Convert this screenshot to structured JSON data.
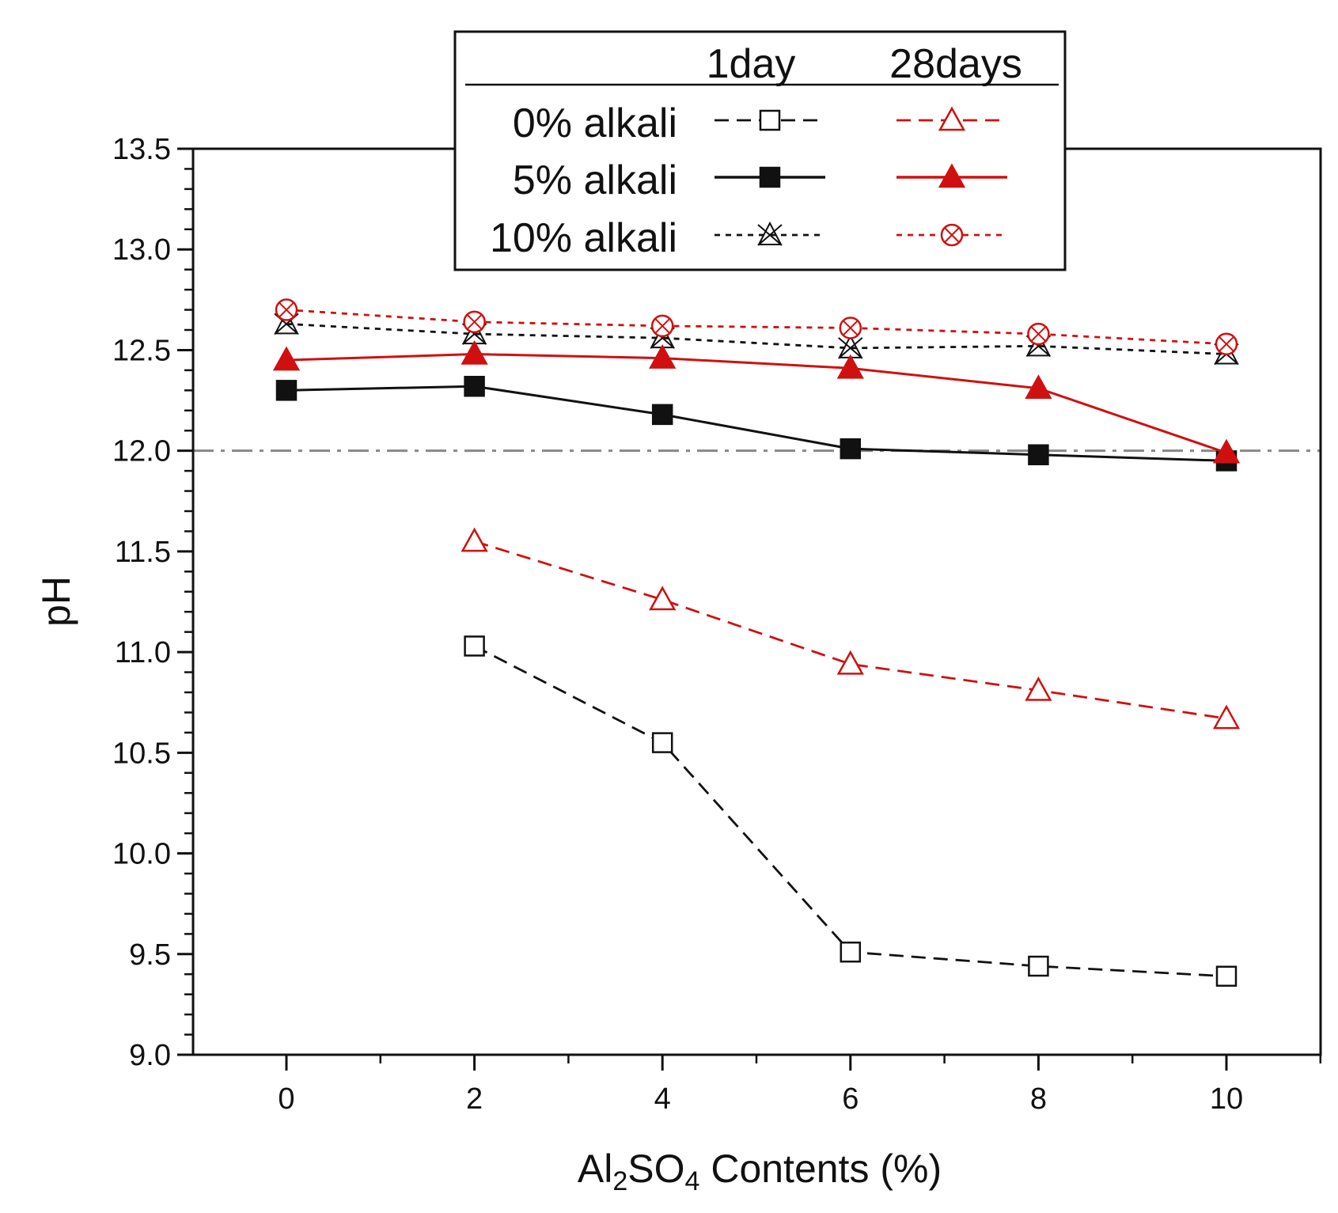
{
  "chart_data": {
    "type": "line",
    "title": "",
    "xlabel": {
      "prefix": "Al",
      "sub1": "2",
      "mid": "SO",
      "sub2": "4",
      "suffix": " Contents (%)"
    },
    "ylabel": "pH",
    "xlim": [
      -1,
      11
    ],
    "ylim": [
      9.0,
      13.5
    ],
    "xticks": [
      0,
      2,
      4,
      6,
      8,
      10
    ],
    "xtick_labels": [
      "0",
      "2",
      "4",
      "6",
      "8",
      "10"
    ],
    "yticks": [
      9.0,
      9.5,
      10.0,
      10.5,
      11.0,
      11.5,
      12.0,
      12.5,
      13.0,
      13.5
    ],
    "ytick_labels": [
      "9.0",
      "9.5",
      "10.0",
      "10.5",
      "11.0",
      "11.5",
      "12.0",
      "12.5",
      "13.0",
      "13.5"
    ],
    "reference_line": {
      "y": 12.0,
      "style": "dash-dot",
      "color": "#888888"
    },
    "legend": {
      "position": "top-center",
      "column_headers": [
        "1day",
        "28days"
      ],
      "row_labels": [
        "0% alkali",
        "5% alkali",
        "10% alkali"
      ]
    },
    "series": [
      {
        "name": "0% alkali - 1day",
        "color": "#111111",
        "line": "dashed",
        "marker": "open-square",
        "x": [
          2,
          4,
          6,
          8,
          10
        ],
        "values": [
          11.03,
          10.55,
          9.51,
          9.44,
          9.39
        ]
      },
      {
        "name": "5% alkali - 1day",
        "color": "#111111",
        "line": "solid",
        "marker": "filled-square",
        "x": [
          0,
          2,
          4,
          6,
          8,
          10
        ],
        "values": [
          12.3,
          12.32,
          12.18,
          12.01,
          11.98,
          11.95
        ]
      },
      {
        "name": "10% alkali - 1day",
        "color": "#111111",
        "line": "dotted",
        "marker": "star-x",
        "x": [
          0,
          2,
          4,
          6,
          8,
          10
        ],
        "values": [
          12.63,
          12.58,
          12.56,
          12.51,
          12.52,
          12.48
        ]
      },
      {
        "name": "0% alkali - 28days",
        "color": "#d01010",
        "line": "dashed",
        "marker": "open-triangle",
        "x": [
          2,
          4,
          6,
          8,
          10
        ],
        "values": [
          11.55,
          11.26,
          10.94,
          10.81,
          10.67
        ]
      },
      {
        "name": "5% alkali - 28days",
        "color": "#d01010",
        "line": "solid",
        "marker": "filled-triangle",
        "x": [
          0,
          2,
          4,
          6,
          8,
          10
        ],
        "values": [
          12.45,
          12.48,
          12.46,
          12.41,
          12.31,
          11.99
        ]
      },
      {
        "name": "10% alkali - 28days",
        "color": "#d01010",
        "line": "dotted",
        "marker": "circle-x",
        "x": [
          0,
          2,
          4,
          6,
          8,
          10
        ],
        "values": [
          12.7,
          12.64,
          12.62,
          12.61,
          12.58,
          12.53
        ]
      }
    ]
  }
}
